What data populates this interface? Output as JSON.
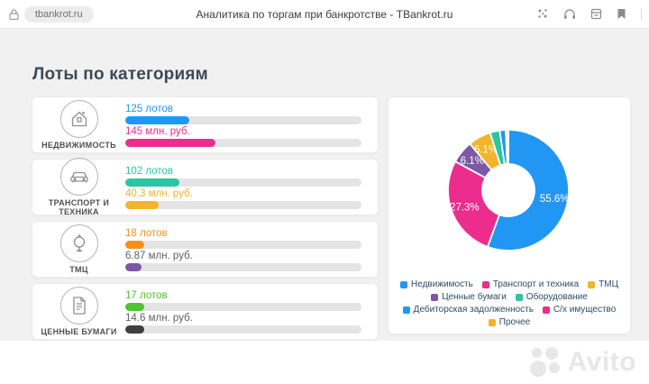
{
  "browser": {
    "url": "tbankrot.ru",
    "title": "Аналитика по торгам при банкротстве - TBankrot.ru"
  },
  "page": {
    "heading": "Лоты по категориям",
    "categories": [
      {
        "name": "НЕДВИЖИМОСТЬ",
        "icon": "house-icon",
        "lots": 125,
        "lots_label": "125 лотов",
        "lots_color": "#2196f3",
        "lots_pct": 27,
        "money": 145,
        "money_label": "145 млн. руб.",
        "money_color": "#ec2d8e",
        "money_pct": 38,
        "money_bar_color": "#ec2d8e"
      },
      {
        "name": "ТРАНСПОРТ И ТЕХНИКА",
        "icon": "car-icon",
        "lots": 102,
        "lots_label": "102 лотов",
        "lots_color": "#2bc5a3",
        "lots_pct": 23,
        "money": 40.3,
        "money_label": "40.3 млн. руб.",
        "money_color": "#f2b42c",
        "money_pct": 14,
        "money_bar_color": "#f2b42c"
      },
      {
        "name": "ТМЦ",
        "icon": "goods-icon",
        "lots": 18,
        "lots_label": "18 лотов",
        "lots_color": "#f78f1e",
        "lots_pct": 8,
        "money": 6.87,
        "money_label": "6.87 млн. руб.",
        "money_color": "#5f5f5f",
        "money_pct": 7,
        "money_bar_color": "#7e57a5"
      },
      {
        "name": "ЦЕННЫЕ БУМАГИ",
        "icon": "document-icon",
        "lots": 17,
        "lots_label": "17 лотов",
        "lots_color": "#4fc332",
        "lots_pct": 8,
        "money": 14.6,
        "money_label": "14.6 млн. руб.",
        "money_color": "#5f5f5f",
        "money_pct": 8,
        "money_bar_color": "#3f3f3f"
      }
    ]
  },
  "chart_data": {
    "type": "pie",
    "donut": true,
    "unit": "%",
    "legend_position": "bottom",
    "slices": [
      {
        "label": "Недвижимость",
        "value": 55.6,
        "color": "#2196f3",
        "data_label": "55.6%"
      },
      {
        "label": "Транспорт и техника",
        "value": 27.3,
        "color": "#ec2d8e",
        "data_label": "27.3%"
      },
      {
        "label": "Ценные бумаги",
        "value": 6.1,
        "color": "#7e57a5",
        "data_label": "6.1%"
      },
      {
        "label": "ТМЦ",
        "value": 6.1,
        "color": "#f2b42c",
        "data_label": "6.1%"
      },
      {
        "label": "Оборудование",
        "value": 2.6,
        "color": "#2bc5a3",
        "data_label": ""
      },
      {
        "label": "Дебиторская задолженность",
        "value": 1.6,
        "color": "#2196f3",
        "data_label": ""
      },
      {
        "label": "С/х имущество",
        "value": 0.5,
        "color": "#ec2d8e",
        "data_label": ""
      },
      {
        "label": "Прочее",
        "value": 0.2,
        "color": "#f2b42c",
        "data_label": ""
      }
    ],
    "legend": [
      {
        "label": "Недвижимость",
        "color": "#2196f3"
      },
      {
        "label": "Транспорт и техника",
        "color": "#ec2d8e"
      },
      {
        "label": "ТМЦ",
        "color": "#f2b42c"
      },
      {
        "label": "Ценные бумаги",
        "color": "#7e57a5"
      },
      {
        "label": "Оборудование",
        "color": "#2bc5a3"
      },
      {
        "label": "Дебиторская задолженность",
        "color": "#2196f3"
      },
      {
        "label": "С/х имущество",
        "color": "#ec2d8e"
      },
      {
        "label": "Прочее",
        "color": "#f2b42c"
      }
    ]
  },
  "watermark": {
    "text": "Avito"
  }
}
